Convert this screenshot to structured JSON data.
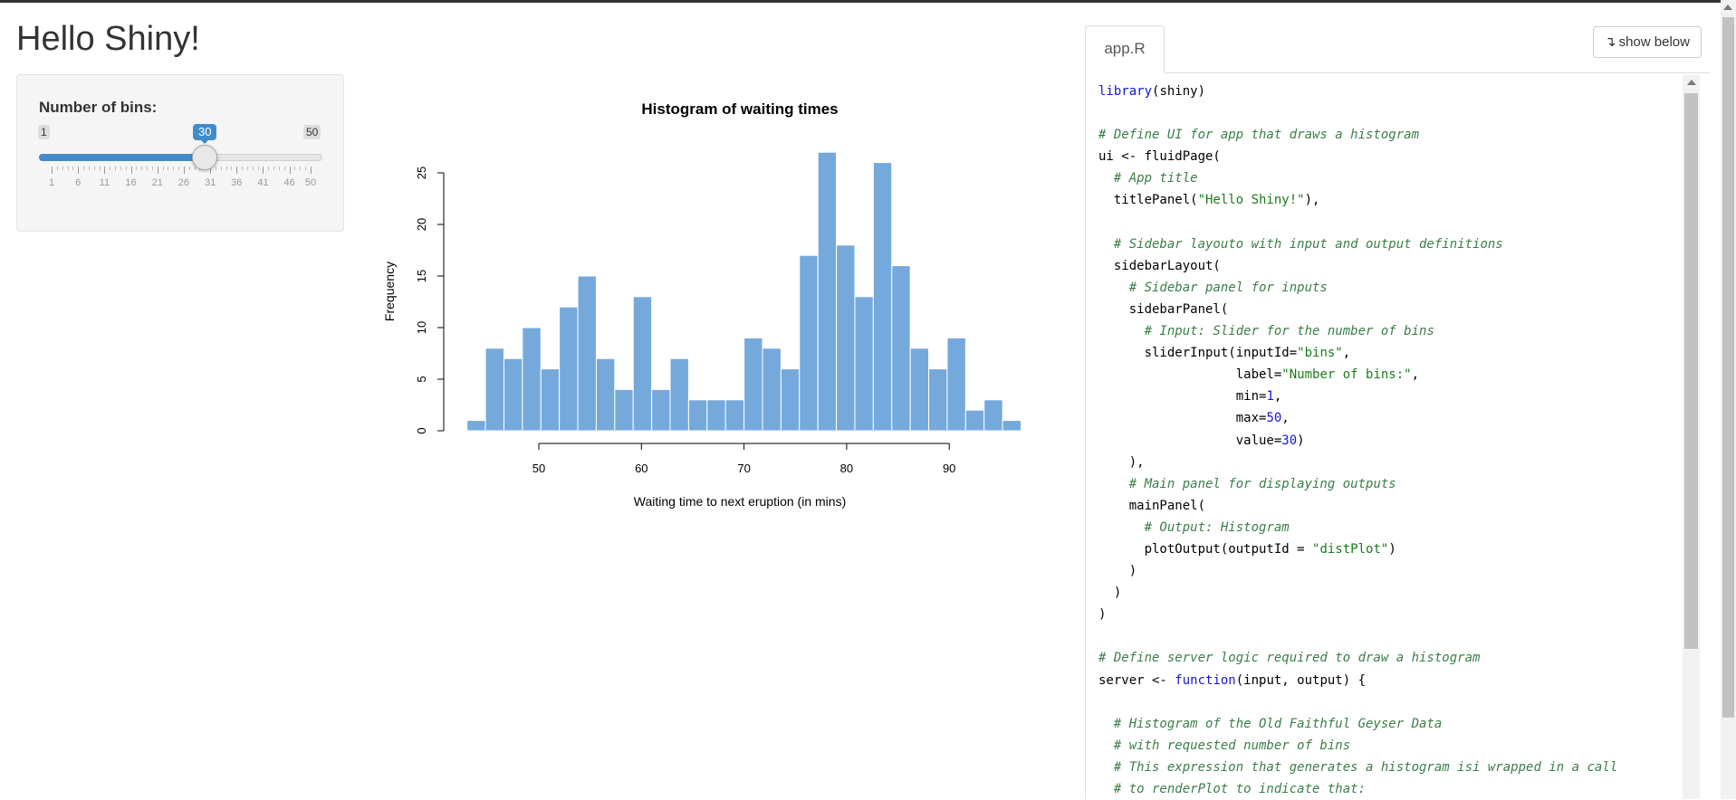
{
  "app": {
    "title": "Hello Shiny!"
  },
  "sidebar": {
    "slider": {
      "label": "Number of bins:",
      "min": "1",
      "max": "50",
      "value": "30",
      "value_fraction": 0.592,
      "grid_labels": [
        "1",
        "6",
        "11",
        "16",
        "21",
        "26",
        "31",
        "36",
        "41",
        "46",
        "50"
      ]
    }
  },
  "chart_data": {
    "type": "bar",
    "title": "Histogram of waiting times",
    "xlabel": "Waiting time to next eruption (in mins)",
    "ylabel": "Frequency",
    "bin_start": 43,
    "bin_width": 1.8,
    "values": [
      1,
      8,
      7,
      10,
      6,
      12,
      15,
      7,
      4,
      13,
      4,
      7,
      3,
      3,
      3,
      9,
      8,
      6,
      17,
      27,
      18,
      13,
      26,
      16,
      8,
      6,
      9,
      2,
      3,
      1
    ],
    "xlim": [
      43,
      96
    ],
    "ylim": [
      0,
      27
    ],
    "xticks": [
      50,
      60,
      70,
      80,
      90
    ],
    "yticks": [
      0,
      5,
      10,
      15,
      20,
      25
    ],
    "bar_color": "#75a9dc"
  },
  "code_panel": {
    "tab_label": "app.R",
    "show_below_label": "show below",
    "lines": [
      [
        [
          "library",
          "k"
        ],
        [
          "(shiny)",
          ""
        ]
      ],
      [],
      [
        [
          "# Define UI for app that draws a histogram",
          "c"
        ]
      ],
      [
        [
          "ui <- fluidPage(",
          ""
        ]
      ],
      [
        [
          "  ",
          ""
        ],
        [
          "# App title",
          "c"
        ]
      ],
      [
        [
          "  titlePanel(",
          ""
        ],
        [
          "\"Hello Shiny!\"",
          "s"
        ],
        [
          "),",
          ""
        ]
      ],
      [],
      [
        [
          "  ",
          ""
        ],
        [
          "# Sidebar layouto with input and output definitions",
          "c"
        ]
      ],
      [
        [
          "  sidebarLayout(",
          ""
        ]
      ],
      [
        [
          "    ",
          ""
        ],
        [
          "# Sidebar panel for inputs",
          "c"
        ]
      ],
      [
        [
          "    sidebarPanel(",
          ""
        ]
      ],
      [
        [
          "      ",
          ""
        ],
        [
          "# Input: Slider for the number of bins",
          "c"
        ]
      ],
      [
        [
          "      sliderInput(inputId=",
          ""
        ],
        [
          "\"bins\"",
          "s"
        ],
        [
          ",",
          ""
        ]
      ],
      [
        [
          "                  label=",
          ""
        ],
        [
          "\"Number of bins:\"",
          "s"
        ],
        [
          ",",
          ""
        ]
      ],
      [
        [
          "                  min=",
          ""
        ],
        [
          "1",
          "n"
        ],
        [
          ",",
          ""
        ]
      ],
      [
        [
          "                  max=",
          ""
        ],
        [
          "50",
          "n"
        ],
        [
          ",",
          ""
        ]
      ],
      [
        [
          "                  value=",
          ""
        ],
        [
          "30",
          "n"
        ],
        [
          ")",
          ""
        ]
      ],
      [
        [
          "    ),",
          ""
        ]
      ],
      [
        [
          "    ",
          ""
        ],
        [
          "# Main panel for displaying outputs",
          "c"
        ]
      ],
      [
        [
          "    mainPanel(",
          ""
        ]
      ],
      [
        [
          "      ",
          ""
        ],
        [
          "# Output: Histogram",
          "c"
        ]
      ],
      [
        [
          "      plotOutput(outputId = ",
          ""
        ],
        [
          "\"distPlot\"",
          "s"
        ],
        [
          ")",
          ""
        ]
      ],
      [
        [
          "    )",
          ""
        ]
      ],
      [
        [
          "  )",
          ""
        ]
      ],
      [
        [
          ")",
          ""
        ]
      ],
      [],
      [
        [
          "# Define server logic required to draw a histogram",
          "c"
        ]
      ],
      [
        [
          "server <- ",
          ""
        ],
        [
          "function",
          "k"
        ],
        [
          "(input, output) {",
          ""
        ]
      ],
      [],
      [
        [
          "  ",
          ""
        ],
        [
          "# Histogram of the Old Faithful Geyser Data",
          "c"
        ]
      ],
      [
        [
          "  ",
          ""
        ],
        [
          "# with requested number of bins",
          "c"
        ]
      ],
      [
        [
          "  ",
          ""
        ],
        [
          "# This expression that generates a histogram isi wrapped in a call",
          "c"
        ]
      ],
      [
        [
          "  ",
          ""
        ],
        [
          "# to renderPlot to indicate that:",
          "c"
        ]
      ]
    ]
  }
}
